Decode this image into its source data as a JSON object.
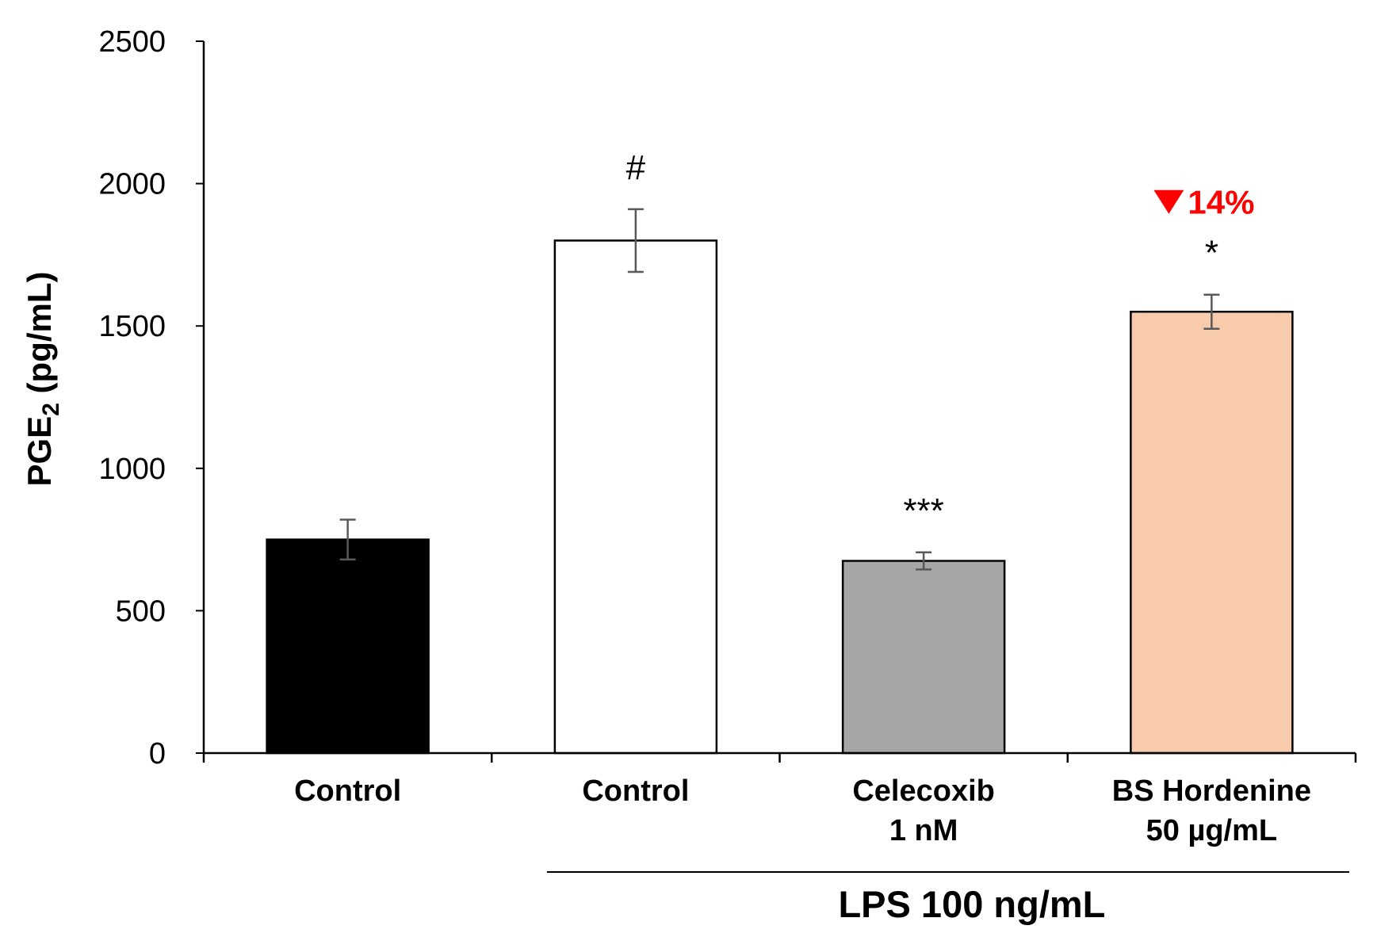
{
  "chart_data": {
    "type": "bar",
    "title": "",
    "ylabel": {
      "main": "PGE",
      "subscript": "2",
      "unit": " (pg/mL)"
    },
    "ylim": [
      0,
      2500
    ],
    "yticks": [
      0,
      500,
      1000,
      1500,
      2000,
      2500
    ],
    "grid": false,
    "categories": [
      [
        "Control"
      ],
      [
        "Control"
      ],
      [
        "Celecoxib",
        "1 nM"
      ],
      [
        "BS Hordenine",
        "50 µg/mL"
      ]
    ],
    "values": [
      750,
      1800,
      675,
      1550
    ],
    "errors": [
      70,
      110,
      30,
      60
    ],
    "bar_colors": [
      "#000000",
      "#ffffff",
      "#a6a6a6",
      "#f8cbad"
    ],
    "bar_edge_color": "#000000",
    "error_bar_color": "#595959",
    "significance_labels": [
      "",
      "#",
      "***",
      "*"
    ],
    "reduction_annotation": {
      "category_index": 3,
      "marker": "down-triangle",
      "text": "14%",
      "color": "#ff0000"
    },
    "group_bracket": {
      "label": "LPS 100 ng/mL",
      "from_category": 1,
      "to_category": 3
    }
  }
}
